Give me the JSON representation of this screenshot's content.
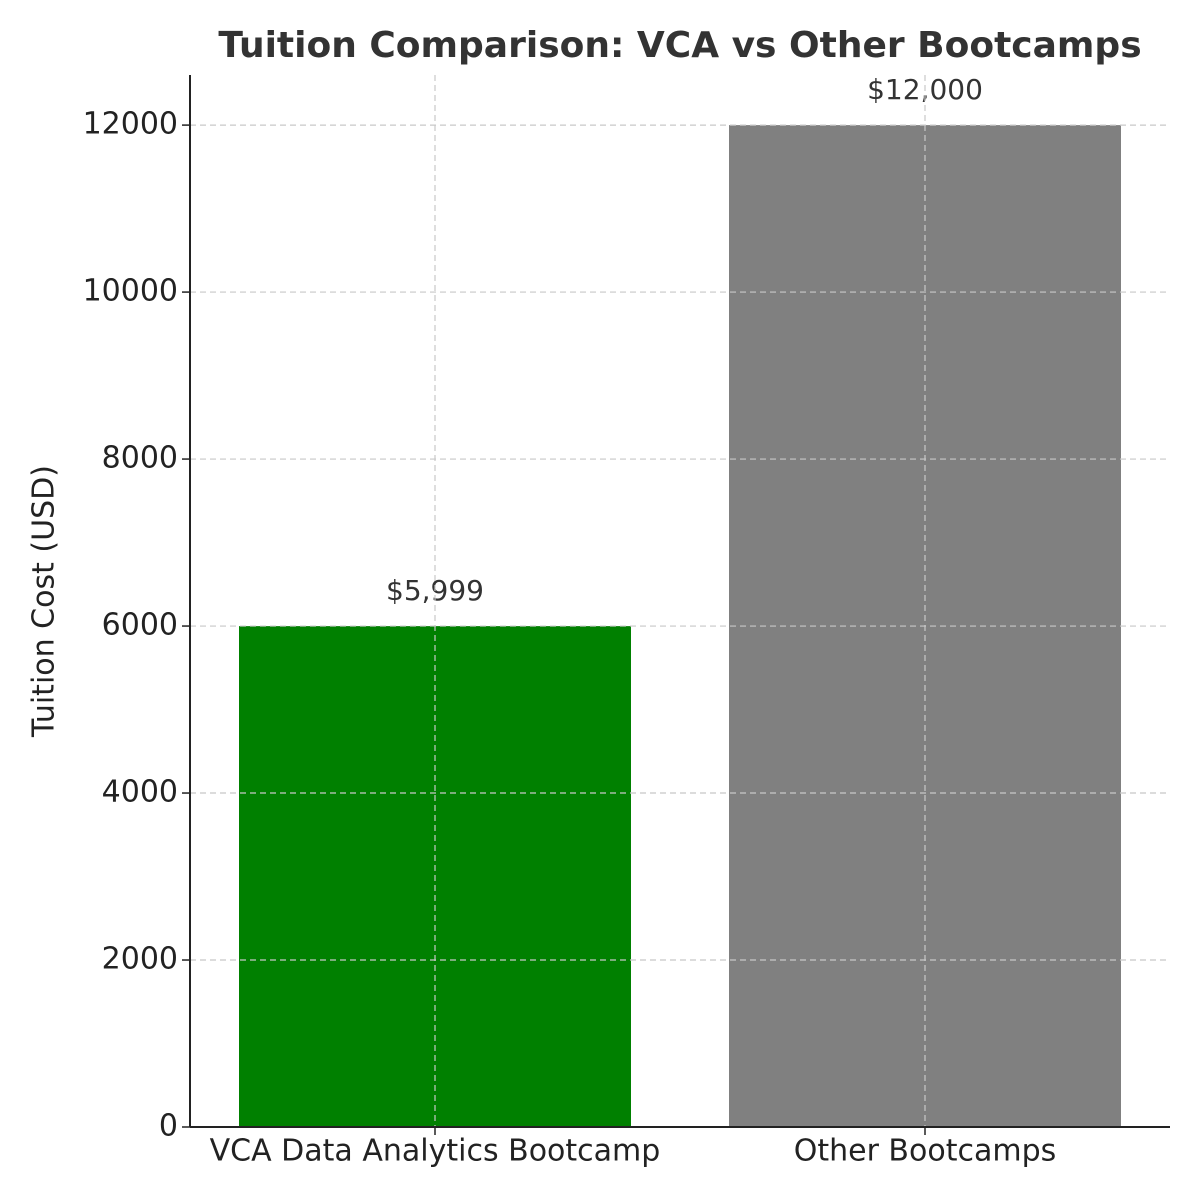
{
  "chart_data": {
    "type": "bar",
    "title": "Tuition Comparison: VCA vs Other Bootcamps",
    "y_label": "Tuition Cost (USD)",
    "categories": [
      "VCA Data Analytics Bootcamp",
      "Other Bootcamps"
    ],
    "values": [
      5999,
      12000
    ],
    "value_labels": [
      "$5,999",
      "$12,000"
    ],
    "colors": [
      "#008000",
      "#808080"
    ],
    "ylim": [
      0,
      12600
    ],
    "yticks": [
      0,
      2000,
      4000,
      6000,
      8000,
      10000,
      12000
    ],
    "grid": true
  }
}
